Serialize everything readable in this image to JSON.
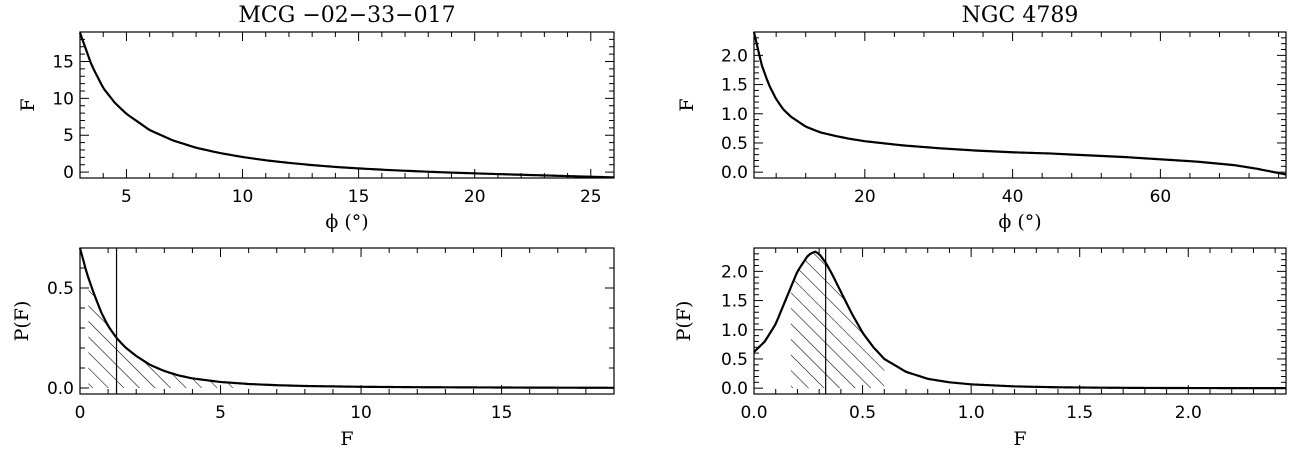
{
  "chart_data": [
    {
      "id": "mcg-f-vs-phi",
      "type": "line",
      "title": "MCG −02−33−017",
      "xlabel": "ϕ (°)",
      "ylabel": "F",
      "xlim": [
        3,
        26
      ],
      "ylim": [
        -0.8,
        19
      ],
      "xticks": [
        5,
        10,
        15,
        20,
        25
      ],
      "yticks": [
        0,
        5,
        10,
        15
      ],
      "xticklabels": [
        "5",
        "10",
        "15",
        "20",
        "25"
      ],
      "yticklabels": [
        "0",
        "5",
        "10",
        "15"
      ],
      "series": [
        {
          "x": [
            3,
            3.5,
            4,
            4.5,
            5,
            6,
            7,
            8,
            9,
            10,
            11,
            12,
            13,
            14,
            15,
            16,
            17,
            18,
            19,
            20,
            21,
            22,
            23,
            24,
            25,
            26
          ],
          "y": [
            18.9,
            14.5,
            11.4,
            9.4,
            7.9,
            5.7,
            4.3,
            3.3,
            2.6,
            2.05,
            1.6,
            1.25,
            0.95,
            0.7,
            0.5,
            0.33,
            0.18,
            0.05,
            -0.07,
            -0.17,
            -0.27,
            -0.36,
            -0.45,
            -0.54,
            -0.63,
            -0.72
          ]
        }
      ]
    },
    {
      "id": "ngc-f-vs-phi",
      "type": "line",
      "title": "NGC 4789",
      "xlabel": "ϕ (°)",
      "ylabel": "F",
      "xlim": [
        5,
        77
      ],
      "ylim": [
        -0.1,
        2.4
      ],
      "xticks": [
        20,
        40,
        60
      ],
      "yticks": [
        0,
        0.5,
        1.0,
        1.5,
        2.0
      ],
      "xticklabels": [
        "20",
        "40",
        "60"
      ],
      "yticklabels": [
        "0.0",
        "0.5",
        "1.0",
        "1.5",
        "2.0"
      ],
      "series": [
        {
          "x": [
            5,
            6,
            7,
            8,
            9,
            10,
            12,
            14,
            16,
            18,
            20,
            25,
            30,
            35,
            40,
            45,
            50,
            55,
            60,
            65,
            70,
            73,
            75,
            77
          ],
          "y": [
            2.4,
            1.85,
            1.5,
            1.25,
            1.07,
            0.95,
            0.78,
            0.68,
            0.62,
            0.57,
            0.53,
            0.46,
            0.41,
            0.37,
            0.34,
            0.32,
            0.29,
            0.26,
            0.22,
            0.18,
            0.12,
            0.06,
            0.01,
            -0.04
          ]
        }
      ]
    },
    {
      "id": "mcg-pdf",
      "type": "area",
      "xlabel": "F",
      "ylabel": "P(F)",
      "xlim": [
        0,
        19
      ],
      "ylim": [
        -0.03,
        0.7
      ],
      "xticks": [
        0,
        5,
        10,
        15
      ],
      "yticks": [
        0.0,
        0.5
      ],
      "xticklabels": [
        "0",
        "5",
        "10",
        "15"
      ],
      "yticklabels": [
        "0.0",
        "0.5"
      ],
      "marker_x": 1.3,
      "shaded_range": [
        0.3,
        5.5
      ],
      "series": [
        {
          "x": [
            0,
            0.25,
            0.5,
            0.75,
            1,
            1.3,
            1.6,
            2,
            2.5,
            3,
            3.5,
            4,
            5,
            6,
            7,
            8,
            10,
            12,
            14,
            16,
            19
          ],
          "y": [
            0.7,
            0.57,
            0.47,
            0.38,
            0.31,
            0.25,
            0.205,
            0.16,
            0.115,
            0.085,
            0.063,
            0.048,
            0.03,
            0.02,
            0.014,
            0.01,
            0.006,
            0.004,
            0.003,
            0.002,
            0.001
          ]
        }
      ]
    },
    {
      "id": "ngc-pdf",
      "type": "area",
      "xlabel": "F",
      "ylabel": "P(F)",
      "xlim": [
        0,
        2.45
      ],
      "ylim": [
        -0.1,
        2.4
      ],
      "xticks": [
        0,
        0.5,
        1.0,
        1.5,
        2.0
      ],
      "yticks": [
        0,
        0.5,
        1.0,
        1.5,
        2.0
      ],
      "xticklabels": [
        "0.0",
        "0.5",
        "1.0",
        "1.5",
        "2.0"
      ],
      "yticklabels": [
        "0.0",
        "0.5",
        "1.0",
        "1.5",
        "2.0"
      ],
      "marker_x": 0.33,
      "shaded_range": [
        0.17,
        0.6
      ],
      "series": [
        {
          "x": [
            0,
            0.05,
            0.1,
            0.15,
            0.2,
            0.25,
            0.28,
            0.3,
            0.33,
            0.36,
            0.4,
            0.45,
            0.5,
            0.55,
            0.6,
            0.7,
            0.8,
            0.9,
            1.0,
            1.2,
            1.4,
            1.6,
            1.8,
            2.0,
            2.2,
            2.45
          ],
          "y": [
            0.62,
            0.8,
            1.1,
            1.55,
            2.0,
            2.28,
            2.34,
            2.3,
            2.15,
            1.95,
            1.65,
            1.28,
            0.95,
            0.7,
            0.5,
            0.28,
            0.16,
            0.1,
            0.065,
            0.03,
            0.015,
            0.008,
            0.004,
            0.002,
            0.001,
            0.0005
          ]
        }
      ]
    }
  ]
}
